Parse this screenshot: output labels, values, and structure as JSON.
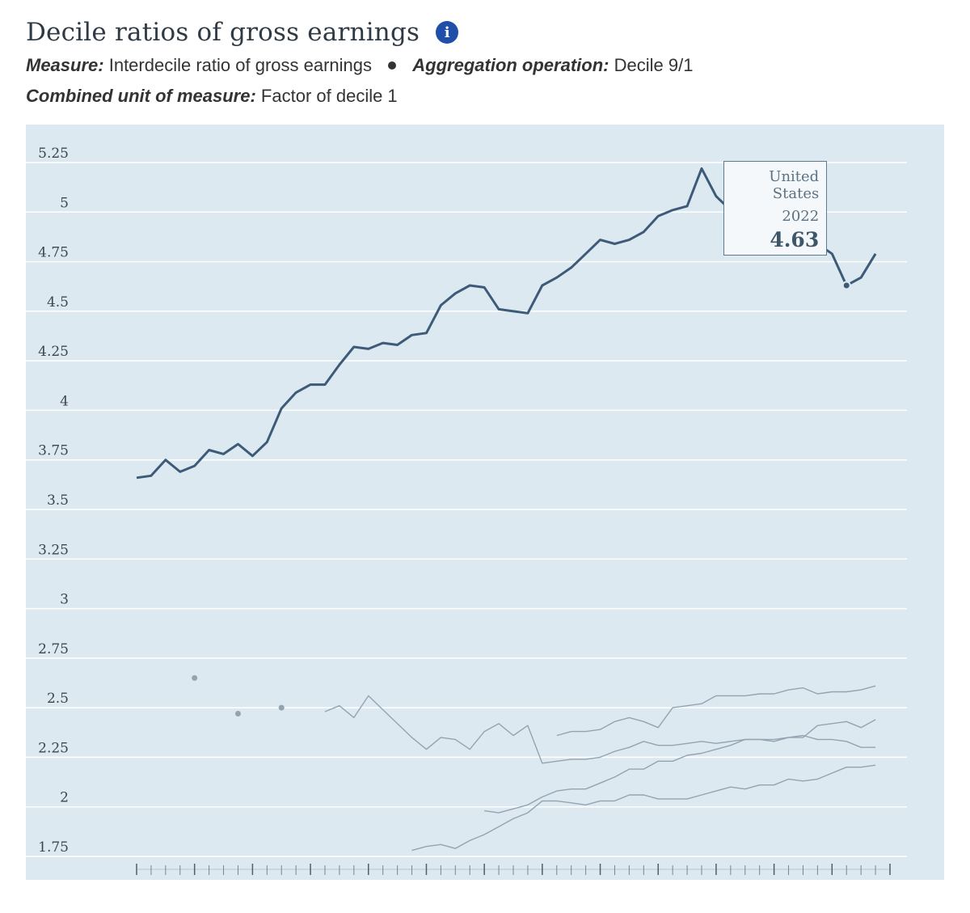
{
  "header": {
    "title": "Decile ratios of gross earnings",
    "info_icon": "info-icon",
    "measure_label": "Measure:",
    "measure_value": "Interdecile ratio of gross earnings",
    "aggregation_label": "Aggregation operation:",
    "aggregation_value": "Decile 9/1",
    "unit_label": "Combined unit of measure:",
    "unit_value": "Factor of decile 1"
  },
  "tooltip": {
    "country": "United States",
    "year": "2022",
    "value": "4.63"
  },
  "colors": {
    "highlight": "#3d5a78",
    "other": "#93a4b1",
    "background": "#dde9f1",
    "grid": "#ffffff"
  },
  "chart_data": {
    "type": "line",
    "title": "Decile ratios of gross earnings",
    "xlabel": "",
    "ylabel": "",
    "xlim": [
      1973,
      2025
    ],
    "ylim": [
      1.75,
      5.25
    ],
    "x_ticks": [
      "1973",
      "1977",
      "1981",
      "1985",
      "1989",
      "1993",
      "1997",
      "2001",
      "2005",
      "2009",
      "2013",
      "2017",
      "2021",
      "2025"
    ],
    "y_ticks": [
      "1.75",
      "2",
      "2.25",
      "2.5",
      "2.75",
      "3",
      "3.25",
      "3.5",
      "3.75",
      "4",
      "4.25",
      "4.5",
      "4.75",
      "5",
      "5.25"
    ],
    "grid": true,
    "series": [
      {
        "name": "United States",
        "highlight": true,
        "x": [
          1973,
          1974,
          1975,
          1976,
          1977,
          1978,
          1979,
          1980,
          1981,
          1982,
          1983,
          1984,
          1985,
          1986,
          1987,
          1988,
          1989,
          1990,
          1991,
          1992,
          1993,
          1994,
          1995,
          1996,
          1997,
          1998,
          1999,
          2000,
          2001,
          2002,
          2003,
          2004,
          2005,
          2006,
          2007,
          2008,
          2009,
          2010,
          2011,
          2012,
          2013,
          2014,
          2015,
          2016,
          2017,
          2018,
          2019,
          2020,
          2021,
          2022,
          2023,
          2024
        ],
        "y": [
          3.66,
          3.67,
          3.75,
          3.69,
          3.72,
          3.8,
          3.78,
          3.83,
          3.77,
          3.84,
          4.01,
          4.09,
          4.13,
          4.13,
          4.23,
          4.32,
          4.31,
          4.34,
          4.33,
          4.38,
          4.39,
          4.53,
          4.59,
          4.63,
          4.62,
          4.51,
          4.5,
          4.49,
          4.63,
          4.67,
          4.72,
          4.79,
          4.86,
          4.84,
          4.86,
          4.9,
          4.98,
          5.01,
          5.03,
          5.22,
          5.08,
          5.01,
          5.04,
          5.04,
          5.06,
          4.95,
          5.0,
          4.84,
          4.79,
          4.63,
          4.67,
          4.79
        ]
      },
      {
        "name": "",
        "x": [
          1977,
          1980,
          1983,
          1986,
          1987,
          1988,
          1989,
          1990,
          1991,
          1992,
          1993,
          1994,
          1995,
          1996,
          1997,
          1998,
          1999,
          2000,
          2001,
          2002,
          2003,
          2004,
          2005,
          2006,
          2007,
          2008,
          2009,
          2010,
          2011,
          2012,
          2013,
          2014,
          2015,
          2016,
          2017,
          2018,
          2019,
          2020,
          2021,
          2022,
          2023,
          2024
        ],
        "y": [
          2.65,
          null,
          null,
          2.48,
          2.51,
          2.45,
          2.56,
          2.49,
          2.42,
          2.35,
          2.29,
          2.35,
          2.34,
          2.29,
          2.38,
          2.42,
          2.36,
          2.41,
          2.22,
          2.23,
          2.24,
          2.24,
          2.25,
          2.28,
          2.3,
          2.33,
          2.31,
          2.31,
          2.32,
          2.33,
          2.32,
          2.33,
          2.34,
          2.34,
          2.34,
          2.35,
          2.35,
          2.41,
          2.42,
          2.43,
          2.4,
          2.44
        ]
      },
      {
        "name": "",
        "x": [
          1980
        ],
        "y": [
          2.47
        ]
      },
      {
        "name": "",
        "x": [
          1983
        ],
        "y": [
          2.5
        ]
      },
      {
        "name": "",
        "x": [
          2002,
          2003,
          2004,
          2005,
          2006,
          2007,
          2008,
          2009,
          2010,
          2011,
          2012,
          2013,
          2014,
          2015,
          2016,
          2017,
          2018,
          2019,
          2020,
          2021,
          2022,
          2023,
          2024
        ],
        "y": [
          2.36,
          2.38,
          2.38,
          2.39,
          2.43,
          2.45,
          2.43,
          2.4,
          2.5,
          2.51,
          2.52,
          2.56,
          2.56,
          2.56,
          2.57,
          2.57,
          2.59,
          2.6,
          2.57,
          2.58,
          2.58,
          2.59,
          2.61
        ]
      },
      {
        "name": "",
        "x": [
          1997,
          1998,
          1999,
          2000,
          2001,
          2002,
          2003,
          2004,
          2005,
          2006,
          2007,
          2008,
          2009,
          2010,
          2011,
          2012,
          2013,
          2014,
          2015,
          2016,
          2017,
          2018,
          2019,
          2020,
          2021,
          2022,
          2023,
          2024
        ],
        "y": [
          1.98,
          1.97,
          1.99,
          2.01,
          2.05,
          2.08,
          2.09,
          2.09,
          2.12,
          2.15,
          2.19,
          2.19,
          2.23,
          2.23,
          2.26,
          2.27,
          2.29,
          2.31,
          2.34,
          2.34,
          2.33,
          2.35,
          2.36,
          2.34,
          2.34,
          2.33,
          2.3,
          2.3
        ]
      },
      {
        "name": "",
        "x": [
          1992,
          1993,
          1994,
          1995,
          1996,
          1997,
          1998,
          1999,
          2000,
          2001,
          2002,
          2003,
          2004,
          2005,
          2006,
          2007,
          2008,
          2009,
          2010,
          2011,
          2012,
          2013,
          2014,
          2015,
          2016,
          2017,
          2018,
          2019,
          2020,
          2021,
          2022,
          2023,
          2024
        ],
        "y": [
          1.78,
          1.8,
          1.81,
          1.79,
          1.83,
          1.86,
          1.9,
          1.94,
          1.97,
          2.03,
          2.03,
          2.02,
          2.01,
          2.03,
          2.03,
          2.06,
          2.06,
          2.04,
          2.04,
          2.04,
          2.06,
          2.08,
          2.1,
          2.09,
          2.11,
          2.11,
          2.14,
          2.13,
          2.14,
          2.17,
          2.2,
          2.2,
          2.21
        ]
      }
    ],
    "highlight_point": {
      "x": 2022,
      "y": 4.63
    }
  }
}
